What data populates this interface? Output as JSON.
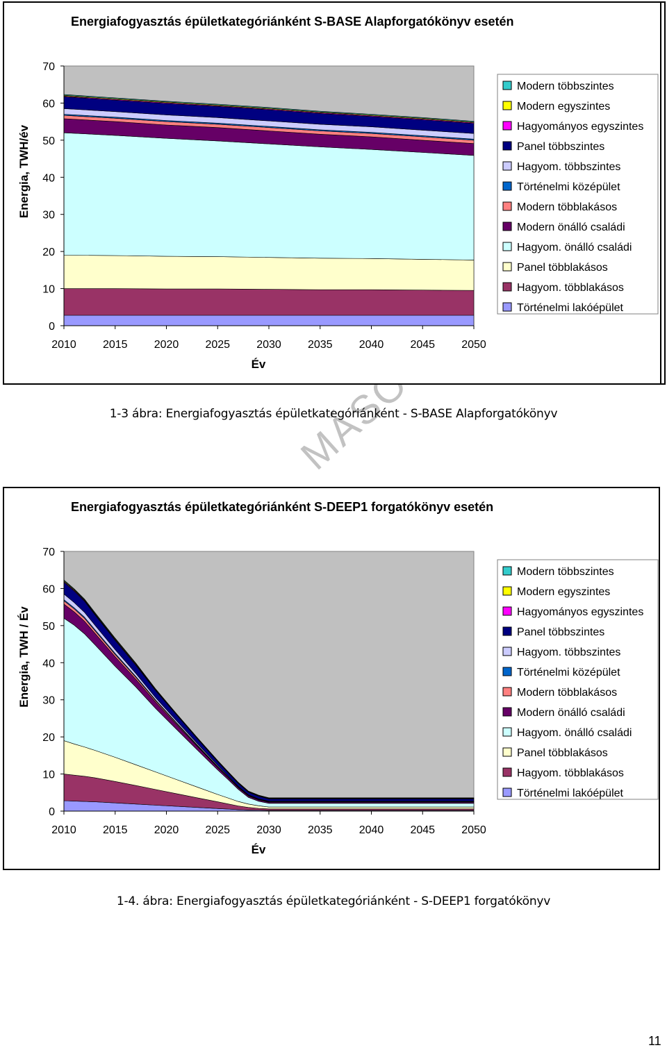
{
  "page": {
    "number": "11"
  },
  "watermark": "MÁSOLHATÓ",
  "figures": [
    {
      "caption": "1-3 ábra: Energiafogyasztás épületkategóriánként - S-BASE Alapforgatókönyv"
    },
    {
      "caption": "1-4. ábra: Energiafogyasztás épületkategóriánként - S-DEEP1 forgatókönyv"
    }
  ],
  "legend_items": [
    {
      "name": "Modern többszintes",
      "color": "#33cccc"
    },
    {
      "name": "Modern egyszintes",
      "color": "#ffff00"
    },
    {
      "name": "Hagyományos egyszintes",
      "color": "#ff00ff"
    },
    {
      "name": "Panel többszintes",
      "color": "#000080"
    },
    {
      "name": "Hagyom. többszintes",
      "color": "#ccccff"
    },
    {
      "name": "Történelmi középület",
      "color": "#0066cc"
    },
    {
      "name": "Modern többlakásos",
      "color": "#ff8080"
    },
    {
      "name": "Modern önálló családi",
      "color": "#660066"
    },
    {
      "name": "Hagyom. önálló családi",
      "color": "#ccffff"
    },
    {
      "name": "Panel többlakásos",
      "color": "#ffffcc"
    },
    {
      "name": "Hagyom. többlakásos",
      "color": "#993366"
    },
    {
      "name": "Történelmi lakóépület",
      "color": "#9999ff"
    }
  ],
  "chart_data": [
    {
      "type": "area",
      "stacked": true,
      "title": "Energiafogyasztás épületkategóriánként S-BASE Alapforgatókönyv esetén",
      "xlabel": "Év",
      "ylabel": "Energia, TWH/év",
      "ylim": [
        0,
        70
      ],
      "y_ticks": [
        0,
        10,
        20,
        30,
        40,
        50,
        60,
        70
      ],
      "x_ticks": [
        2010,
        2015,
        2020,
        2025,
        2030,
        2035,
        2040,
        2045,
        2050
      ],
      "x": [
        2010,
        2015,
        2020,
        2025,
        2030,
        2035,
        2040,
        2045,
        2050
      ],
      "plot_background": "#c0c0c0",
      "legend_position": "right",
      "series": [
        {
          "name": "Történelmi lakóépület",
          "values": [
            2.8,
            2.8,
            2.8,
            2.8,
            2.8,
            2.8,
            2.8,
            2.8,
            2.8
          ]
        },
        {
          "name": "Hagyom. többlakásos",
          "values": [
            7.2,
            7.2,
            7.1,
            7.1,
            7.0,
            6.9,
            6.9,
            6.8,
            6.7
          ]
        },
        {
          "name": "Panel többlakásos",
          "values": [
            9.0,
            8.9,
            8.8,
            8.7,
            8.6,
            8.5,
            8.4,
            8.3,
            8.2
          ]
        },
        {
          "name": "Hagyom. önálló családi",
          "values": [
            33.0,
            32.4,
            31.8,
            31.2,
            30.6,
            30.0,
            29.4,
            28.8,
            28.2
          ]
        },
        {
          "name": "Modern önálló családi",
          "values": [
            3.8,
            3.7,
            3.6,
            3.6,
            3.5,
            3.4,
            3.4,
            3.3,
            3.2
          ]
        },
        {
          "name": "Modern többlakásos",
          "values": [
            0.9,
            0.9,
            0.9,
            0.9,
            0.9,
            0.9,
            0.9,
            0.9,
            0.9
          ]
        },
        {
          "name": "Történelmi középület",
          "values": [
            0.3,
            0.3,
            0.3,
            0.3,
            0.3,
            0.3,
            0.3,
            0.3,
            0.3
          ]
        },
        {
          "name": "Hagyom. többszintes",
          "values": [
            1.5,
            1.5,
            1.5,
            1.5,
            1.5,
            1.5,
            1.5,
            1.5,
            1.5
          ]
        },
        {
          "name": "Panel többszintes",
          "values": [
            3.2,
            3.1,
            3.1,
            3.0,
            3.0,
            2.9,
            2.8,
            2.8,
            2.7
          ]
        },
        {
          "name": "Hagyományos egyszintes",
          "values": [
            0.2,
            0.2,
            0.2,
            0.2,
            0.2,
            0.2,
            0.2,
            0.2,
            0.2
          ]
        },
        {
          "name": "Modern egyszintes",
          "values": [
            0.2,
            0.2,
            0.2,
            0.2,
            0.2,
            0.2,
            0.2,
            0.2,
            0.2
          ]
        },
        {
          "name": "Modern többszintes",
          "values": [
            0.2,
            0.2,
            0.2,
            0.2,
            0.2,
            0.2,
            0.2,
            0.2,
            0.2
          ]
        }
      ]
    },
    {
      "type": "area",
      "stacked": true,
      "title": "Energiafogyasztás épületkategóriánként S-DEEP1 forgatókönyv esetén",
      "xlabel": "Év",
      "ylabel": "Energia, TWH / Év",
      "ylim": [
        0,
        70
      ],
      "y_ticks": [
        0,
        10,
        20,
        30,
        40,
        50,
        60,
        70
      ],
      "x_ticks": [
        2010,
        2015,
        2020,
        2025,
        2030,
        2035,
        2040,
        2045,
        2050
      ],
      "x": [
        2010,
        2011,
        2012,
        2013,
        2015,
        2017,
        2019,
        2021,
        2023,
        2025,
        2026,
        2027,
        2028,
        2029,
        2030,
        2035,
        2040,
        2045,
        2050
      ],
      "plot_background": "#c0c0c0",
      "legend_position": "right",
      "series": [
        {
          "name": "Történelmi lakóépület",
          "values": [
            2.8,
            2.7,
            2.6,
            2.5,
            2.2,
            1.9,
            1.6,
            1.3,
            1.0,
            0.7,
            0.55,
            0.4,
            0.3,
            0.25,
            0.2,
            0.2,
            0.2,
            0.2,
            0.2
          ]
        },
        {
          "name": "Hagyom. többlakásos",
          "values": [
            7.2,
            7.0,
            6.8,
            6.5,
            5.8,
            5.0,
            4.2,
            3.4,
            2.6,
            1.8,
            1.4,
            1.0,
            0.7,
            0.5,
            0.4,
            0.4,
            0.4,
            0.4,
            0.4
          ]
        },
        {
          "name": "Panel többlakásos",
          "values": [
            9.0,
            8.4,
            7.9,
            7.4,
            6.5,
            5.6,
            4.7,
            3.8,
            2.9,
            2.0,
            1.6,
            1.2,
            0.9,
            0.7,
            0.5,
            0.5,
            0.5,
            0.5,
            0.5
          ]
        },
        {
          "name": "Hagyom. önálló családi",
          "values": [
            33.0,
            32.0,
            30.5,
            28.5,
            24.5,
            21.0,
            17.0,
            13.5,
            10.0,
            6.6,
            5.0,
            3.3,
            1.8,
            1.2,
            1.0,
            1.0,
            1.0,
            1.0,
            1.0
          ]
        },
        {
          "name": "Modern önálló családi",
          "values": [
            3.8,
            3.6,
            3.4,
            3.1,
            2.6,
            2.1,
            1.7,
            1.3,
            1.0,
            0.7,
            0.55,
            0.45,
            0.4,
            0.35,
            0.3,
            0.3,
            0.3,
            0.3,
            0.3
          ]
        },
        {
          "name": "Modern többlakásos",
          "values": [
            0.9,
            0.8,
            0.8,
            0.7,
            0.6,
            0.5,
            0.4,
            0.3,
            0.2,
            0.15,
            0.1,
            0.1,
            0.1,
            0.1,
            0.1,
            0.1,
            0.1,
            0.1,
            0.1
          ]
        },
        {
          "name": "Történelmi középület",
          "values": [
            0.3,
            0.3,
            0.3,
            0.3,
            0.3,
            0.25,
            0.2,
            0.2,
            0.15,
            0.1,
            0.1,
            0.1,
            0.1,
            0.1,
            0.1,
            0.1,
            0.1,
            0.1,
            0.1
          ]
        },
        {
          "name": "Hagyom. többszintes",
          "values": [
            1.5,
            1.4,
            1.3,
            1.2,
            1.0,
            0.8,
            0.6,
            0.5,
            0.4,
            0.3,
            0.2,
            0.15,
            0.1,
            0.1,
            0.1,
            0.1,
            0.1,
            0.1,
            0.1
          ]
        },
        {
          "name": "Panel többszintes",
          "values": [
            3.2,
            3.1,
            3.0,
            2.8,
            2.5,
            2.2,
            1.9,
            1.6,
            1.3,
            1.0,
            0.9,
            0.8,
            0.7,
            0.7,
            0.6,
            0.6,
            0.6,
            0.6,
            0.6
          ]
        },
        {
          "name": "Hagyományos egyszintes",
          "values": [
            0.2,
            0.2,
            0.2,
            0.2,
            0.2,
            0.2,
            0.15,
            0.1,
            0.1,
            0.1,
            0.1,
            0.1,
            0.1,
            0.1,
            0.1,
            0.1,
            0.1,
            0.1,
            0.1
          ]
        },
        {
          "name": "Modern egyszintes",
          "values": [
            0.2,
            0.2,
            0.2,
            0.2,
            0.2,
            0.2,
            0.15,
            0.1,
            0.1,
            0.1,
            0.1,
            0.1,
            0.1,
            0.1,
            0.1,
            0.1,
            0.1,
            0.1,
            0.1
          ]
        },
        {
          "name": "Modern többszintes",
          "values": [
            0.2,
            0.2,
            0.2,
            0.2,
            0.2,
            0.2,
            0.15,
            0.1,
            0.1,
            0.1,
            0.1,
            0.1,
            0.1,
            0.1,
            0.1,
            0.1,
            0.1,
            0.1,
            0.1
          ]
        }
      ]
    }
  ]
}
